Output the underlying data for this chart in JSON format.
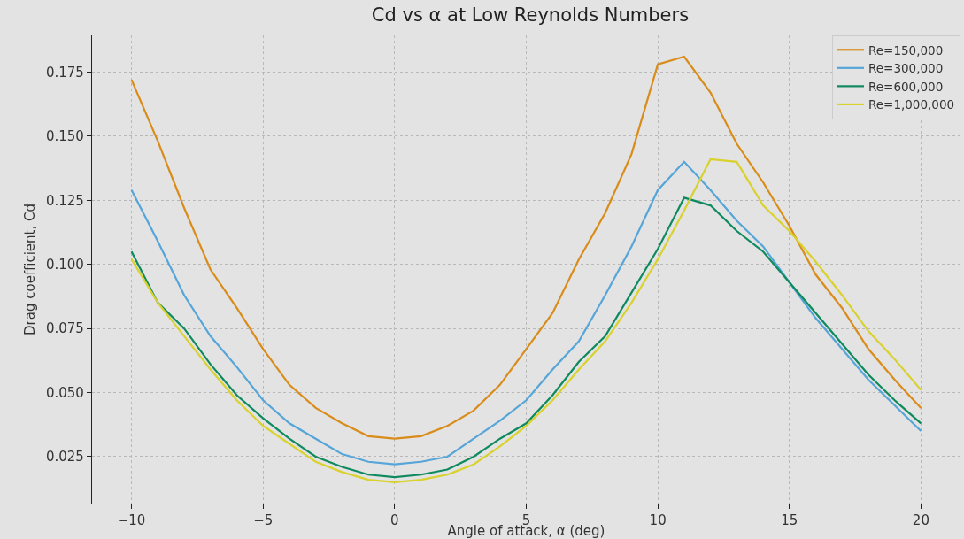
{
  "chart_data": {
    "type": "line",
    "title": "Cd vs α at Low Reynolds Numbers",
    "xlabel": "Angle of attack, α (deg)",
    "ylabel": "Drag coefficient, Cd",
    "x": [
      -10,
      -9,
      -8,
      -7,
      -6,
      -5,
      -4,
      -3,
      -2,
      -1,
      0,
      1,
      2,
      3,
      4,
      5,
      6,
      7,
      8,
      9,
      10,
      11,
      12,
      13,
      14,
      15,
      16,
      17,
      18,
      19,
      20
    ],
    "series": [
      {
        "name": "Re=150,000",
        "color": "#d98c1a",
        "values": [
          0.172,
          0.148,
          0.122,
          0.098,
          0.083,
          0.067,
          0.053,
          0.044,
          0.038,
          0.033,
          0.032,
          0.033,
          0.037,
          0.043,
          0.053,
          0.067,
          0.081,
          0.102,
          0.12,
          0.143,
          0.178,
          0.181,
          0.167,
          0.147,
          0.132,
          0.115,
          0.096,
          0.083,
          0.067,
          0.055,
          0.044
        ]
      },
      {
        "name": "Re=300,000",
        "color": "#56a5d9",
        "values": [
          0.129,
          0.109,
          0.088,
          0.072,
          0.06,
          0.047,
          0.038,
          0.032,
          0.026,
          0.023,
          0.022,
          0.023,
          0.025,
          0.032,
          0.039,
          0.047,
          0.059,
          0.07,
          0.088,
          0.107,
          0.129,
          0.14,
          0.129,
          0.117,
          0.107,
          0.093,
          0.079,
          0.067,
          0.055,
          0.045,
          0.035
        ]
      },
      {
        "name": "Re=600,000",
        "color": "#0f8a5f",
        "values": [
          0.105,
          0.085,
          0.075,
          0.061,
          0.049,
          0.04,
          0.032,
          0.025,
          0.021,
          0.018,
          0.017,
          0.018,
          0.02,
          0.025,
          0.032,
          0.038,
          0.049,
          0.062,
          0.072,
          0.089,
          0.106,
          0.126,
          0.123,
          0.113,
          0.105,
          0.093,
          0.081,
          0.069,
          0.057,
          0.047,
          0.038
        ]
      },
      {
        "name": "Re=1,000,000",
        "color": "#d9d12e",
        "values": [
          0.102,
          0.085,
          0.072,
          0.059,
          0.047,
          0.037,
          0.03,
          0.023,
          0.019,
          0.016,
          0.015,
          0.016,
          0.018,
          0.022,
          0.029,
          0.037,
          0.047,
          0.059,
          0.07,
          0.085,
          0.102,
          0.121,
          0.141,
          0.14,
          0.123,
          0.113,
          0.101,
          0.088,
          0.074,
          0.063,
          0.051
        ]
      }
    ],
    "xlim": [
      -11.5,
      21.5
    ],
    "xticks": [
      {
        "value": -10,
        "label": "−10"
      },
      {
        "value": -5,
        "label": "−5"
      },
      0,
      5,
      10,
      15,
      20
    ],
    "ylim": [
      0.0067,
      0.1893
    ],
    "yticks": [
      {
        "value": 0.025,
        "label": "0.025"
      },
      {
        "value": 0.05,
        "label": "0.050"
      },
      {
        "value": 0.075,
        "label": "0.075"
      },
      {
        "value": 0.1,
        "label": "0.100"
      },
      {
        "value": 0.125,
        "label": "0.125"
      },
      {
        "value": 0.15,
        "label": "0.150"
      },
      {
        "value": 0.175,
        "label": "0.175"
      }
    ],
    "grid": true,
    "legend": "top right",
    "line_style": "solid",
    "marker": "none"
  }
}
